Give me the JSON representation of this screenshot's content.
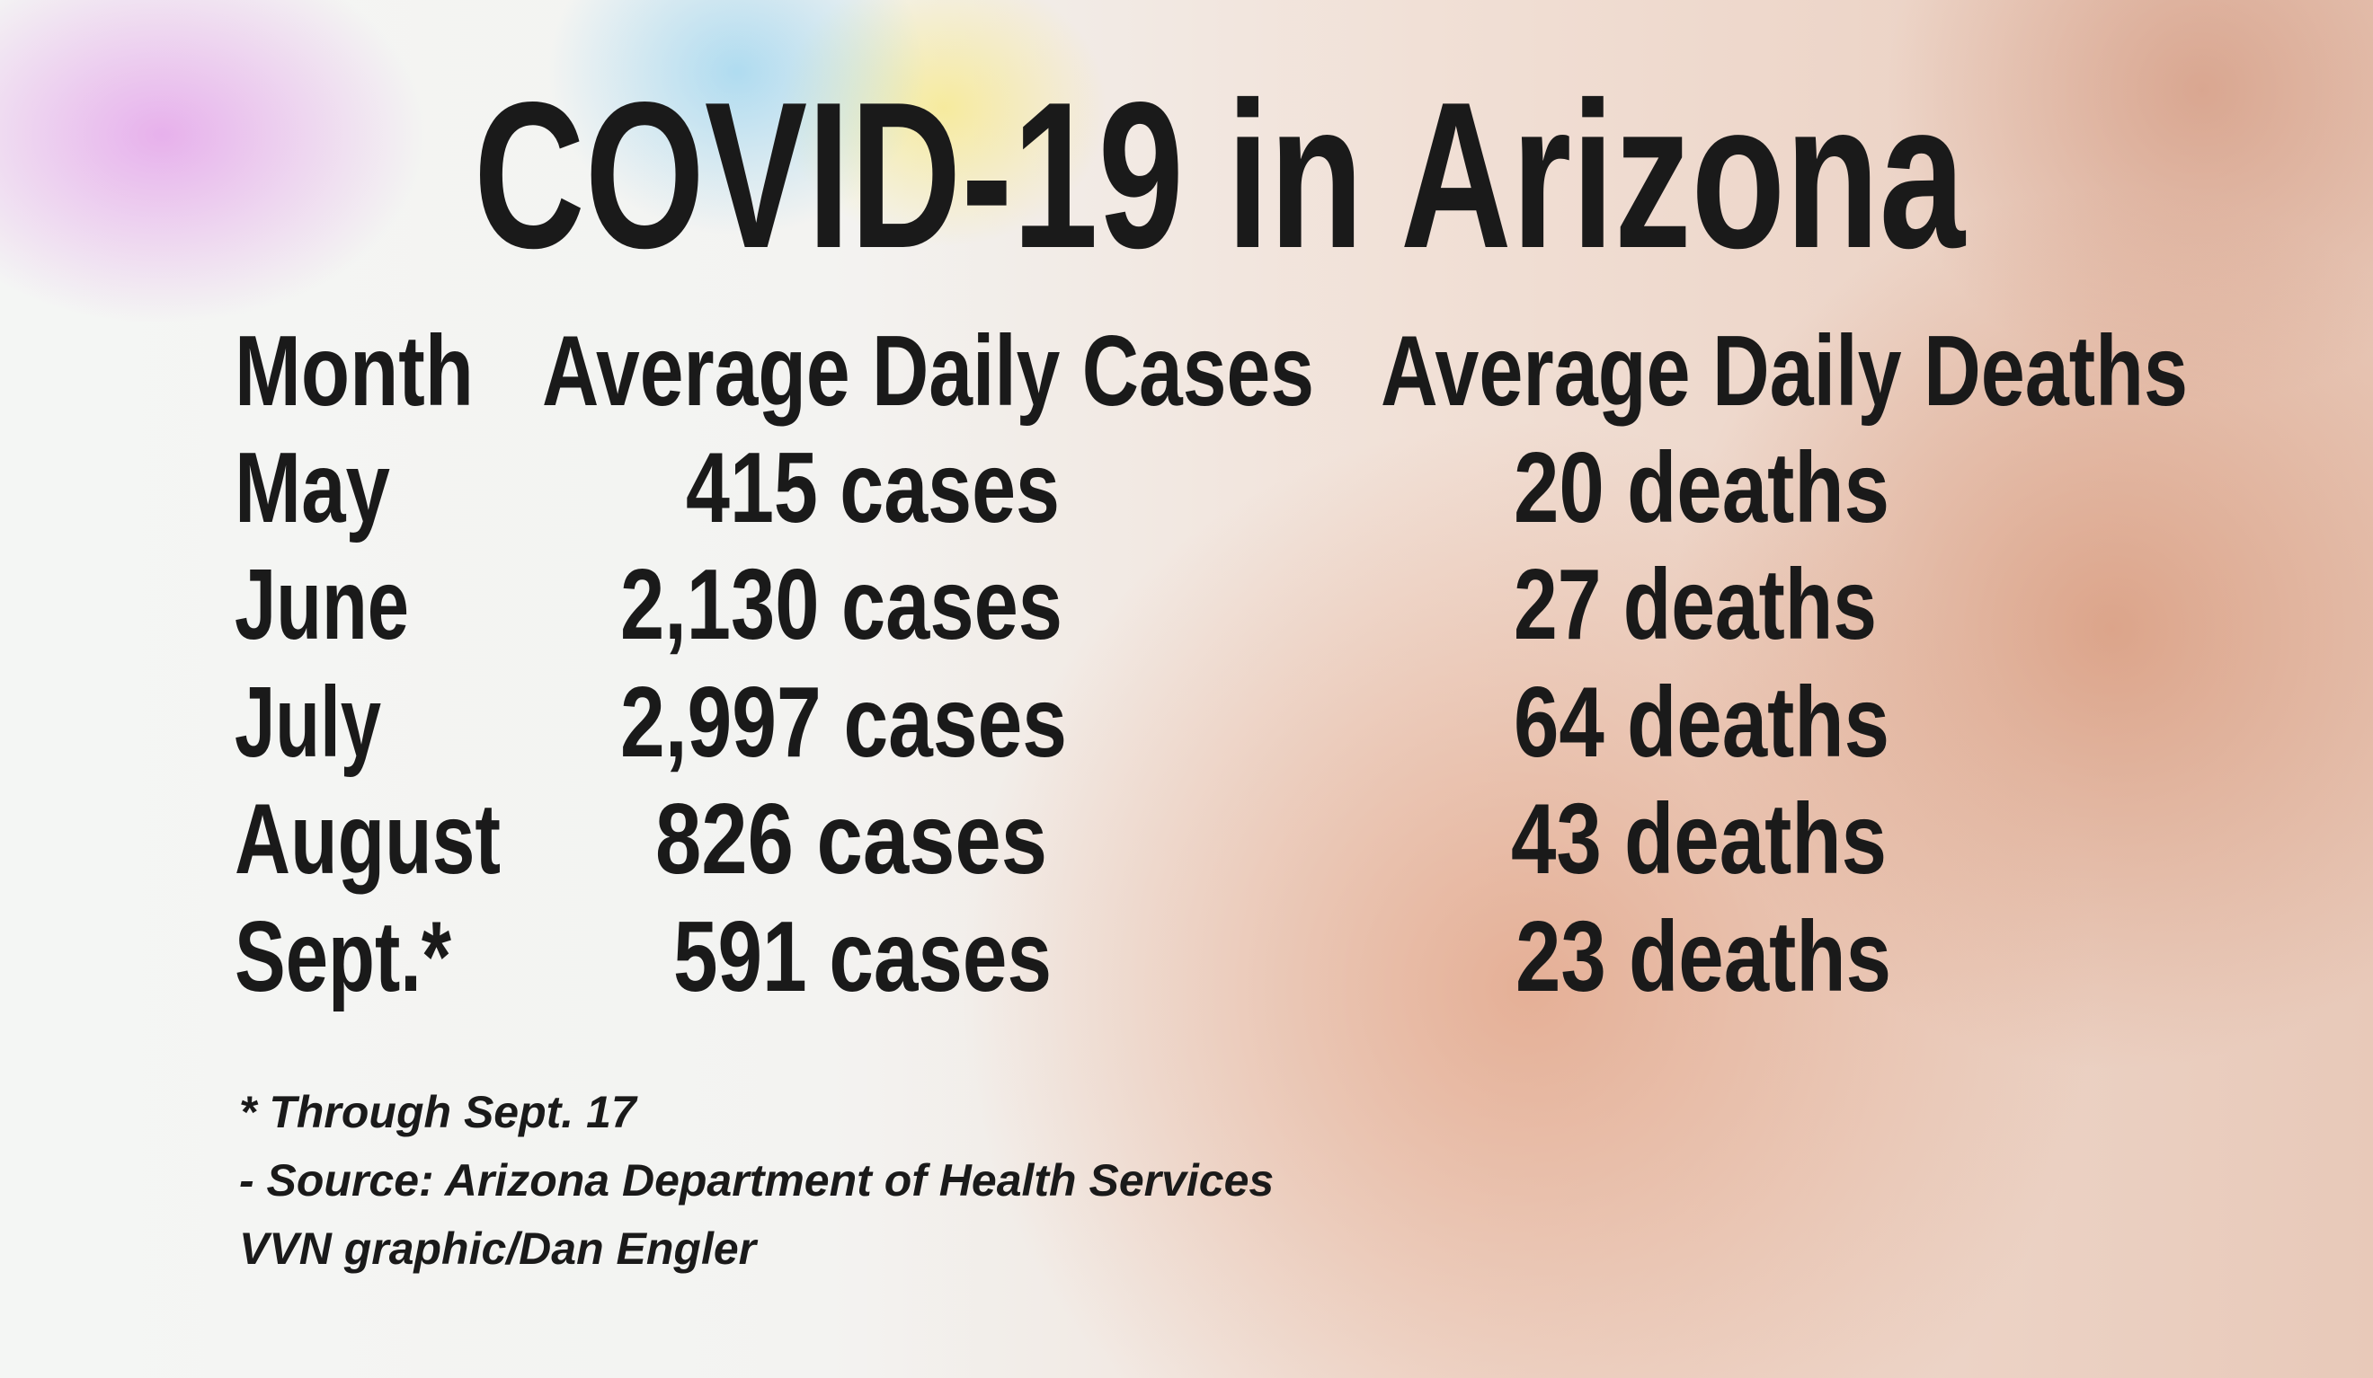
{
  "title": "COVID-19 in Arizona",
  "table": {
    "header": [
      "Month",
      "Average Daily Cases",
      "Average Daily Deaths"
    ],
    "rows": [
      [
        "May",
        "415 cases",
        "20 deaths"
      ],
      [
        "June",
        "2,130 cases",
        "27 deaths"
      ],
      [
        "July",
        "2,997 cases",
        "64 deaths"
      ],
      [
        "August",
        "826 cases",
        "43 deaths"
      ],
      [
        "Sept.*",
        "591 cases",
        "23 deaths"
      ]
    ]
  },
  "notes": [
    "* Through Sept. 17",
    "- Source: Arizona Department of Health Services",
    "VVN graphic/Dan Engler"
  ]
}
